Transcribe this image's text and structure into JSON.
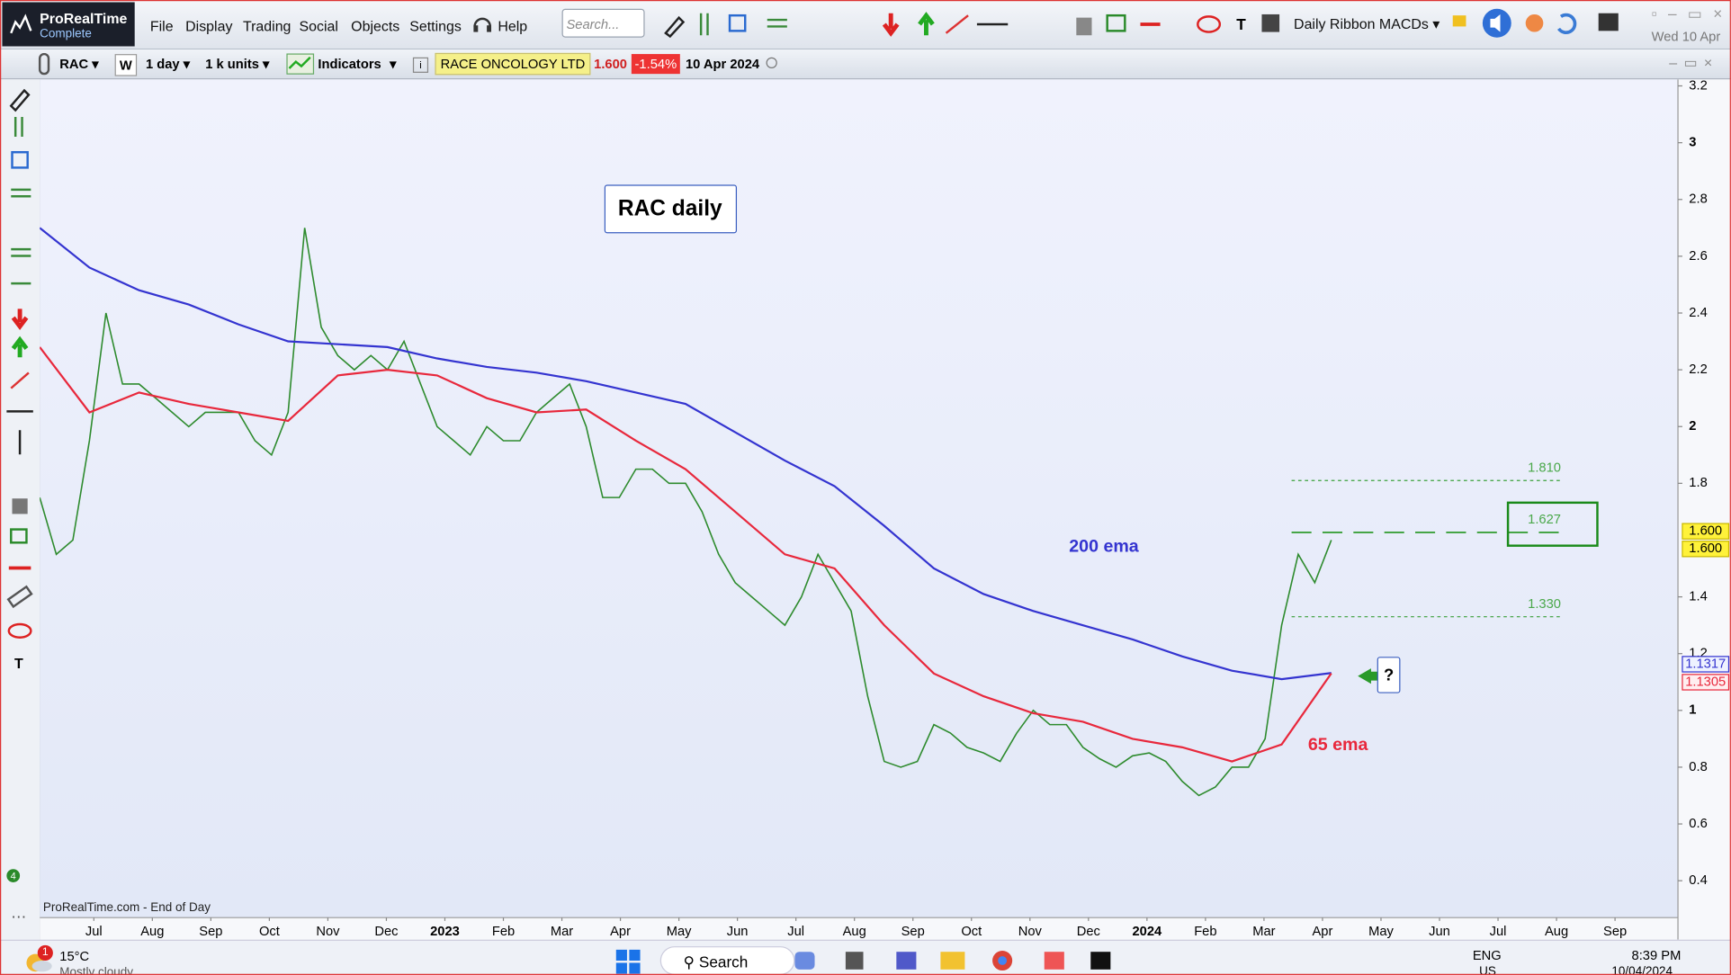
{
  "app": {
    "logo": "ProRealTime",
    "edition": "Complete",
    "menu": [
      "File",
      "Display",
      "Trading",
      "Social",
      "Objects",
      "Settings",
      "Help"
    ],
    "search_placeholder": "Search...",
    "layout_name": "Daily Ribbon MACDs",
    "date": "Wed 10 Apr"
  },
  "instrument_bar": {
    "ticker": "RAC",
    "week": "W",
    "period": "1 day",
    "units": "1 k units",
    "indicators": "Indicators",
    "name": "RACE ONCOLOGY LTD",
    "last": "1.600",
    "change": "-1.54%",
    "date": "10 Apr 2024"
  },
  "chart_data": {
    "type": "line",
    "title": "RAC daily",
    "footer": "ProRealTime.com - End of Day",
    "x_labels": [
      "Jul",
      "Aug",
      "Sep",
      "Oct",
      "Nov",
      "Dec",
      "2023",
      "Feb",
      "Mar",
      "Apr",
      "May",
      "Jun",
      "Jul",
      "Aug",
      "Sep",
      "Oct",
      "Nov",
      "Dec",
      "2024",
      "Feb",
      "Mar",
      "Apr",
      "May",
      "Jun",
      "Jul",
      "Aug",
      "Sep"
    ],
    "ylim": [
      0.27,
      3.223
    ],
    "yticks": [
      0.4,
      0.6,
      0.8,
      1,
      1.2,
      1.4,
      1.8,
      2,
      2.2,
      2.4,
      2.6,
      2.8,
      3,
      3.2
    ],
    "series": [
      {
        "color": "#2e8b2e",
        "values": [
          1.75,
          1.55,
          1.6,
          1.95,
          2.4,
          2.15,
          2.15,
          2.1,
          2.05,
          2.0,
          2.05,
          2.05,
          2.05,
          1.95,
          1.9,
          2.05,
          2.7,
          2.35,
          2.25,
          2.2,
          2.25,
          2.2,
          2.3,
          2.15,
          2.0,
          1.95,
          1.9,
          2.0,
          1.95,
          1.95,
          2.05,
          2.1,
          2.15,
          2.0,
          1.75,
          1.75,
          1.85,
          1.85,
          1.8,
          1.8,
          1.7,
          1.55,
          1.45,
          1.4,
          1.35,
          1.3,
          1.4,
          1.55,
          1.45,
          1.35,
          1.05,
          0.82,
          0.8,
          0.82,
          0.95,
          0.92,
          0.87,
          0.85,
          0.82,
          0.92,
          1.0,
          0.95,
          0.95,
          0.87,
          0.83,
          0.8,
          0.84,
          0.85,
          0.82,
          0.75,
          0.7,
          0.73,
          0.8,
          0.8,
          0.9,
          1.3,
          1.55,
          1.45,
          1.6
        ]
      },
      {
        "name": "200 ema",
        "color": "#3434d0",
        "values": [
          2.7,
          2.56,
          2.48,
          2.43,
          2.36,
          2.3,
          2.29,
          2.28,
          2.24,
          2.21,
          2.19,
          2.16,
          2.12,
          2.08,
          1.98,
          1.88,
          1.79,
          1.65,
          1.5,
          1.41,
          1.35,
          1.3,
          1.25,
          1.19,
          1.14,
          1.11,
          1.1317
        ]
      },
      {
        "name": "65 ema",
        "color": "#e8283c",
        "values": [
          2.28,
          2.05,
          2.12,
          2.08,
          2.05,
          2.02,
          2.18,
          2.2,
          2.18,
          2.1,
          2.05,
          2.06,
          1.95,
          1.85,
          1.7,
          1.55,
          1.5,
          1.3,
          1.13,
          1.05,
          0.99,
          0.96,
          0.9,
          0.87,
          0.82,
          0.88,
          1.1305
        ]
      }
    ],
    "levels": [
      {
        "value": 1.81,
        "label": "1.810"
      },
      {
        "value": 1.627,
        "label": "1.627"
      },
      {
        "value": 1.33,
        "label": "1.330"
      }
    ],
    "axis_markers": [
      {
        "value": 1.6,
        "label": "1.600"
      },
      {
        "value": 1.6,
        "label": "1.600"
      },
      {
        "value": 1.1317,
        "label": "1.1317"
      },
      {
        "value": 1.1305,
        "label": "1.1305"
      }
    ],
    "annotation": "?"
  },
  "sidebar": {
    "badge": 4
  },
  "taskbar": {
    "notification_count": 1,
    "temperature": "15°C",
    "weather": "Mostly cloudy",
    "search": "Search",
    "language": "ENG",
    "region": "US",
    "time": "8:39 PM",
    "date": "10/04/2024"
  }
}
